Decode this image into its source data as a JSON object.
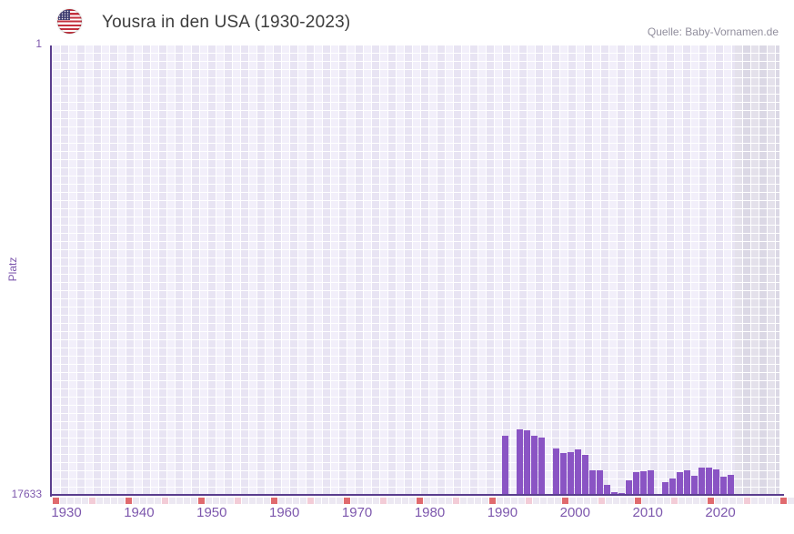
{
  "header": {
    "title": "Yousra in den USA (1930-2023)",
    "source_credit": "Quelle: Baby-Vornamen.de",
    "flag_icon": "us-flag-icon"
  },
  "chart_data": {
    "type": "bar",
    "title": "Yousra in den USA (1930-2023)",
    "xlabel": "",
    "ylabel": "Platz",
    "y_axis": {
      "min": 1,
      "max": 17633,
      "inverted": true,
      "tick_labels": [
        "1",
        "17633"
      ]
    },
    "x_axis": {
      "range": [
        1930,
        2030
      ],
      "tick_labels": [
        "1930",
        "1940",
        "1950",
        "1960",
        "1970",
        "1980",
        "1990",
        "2000",
        "2010",
        "2020"
      ]
    },
    "grid": true,
    "legend": false,
    "points": [
      {
        "year": 1991,
        "rank": 15280
      },
      {
        "year": 1993,
        "rank": 15030
      },
      {
        "year": 1994,
        "rank": 15070
      },
      {
        "year": 1995,
        "rank": 15280
      },
      {
        "year": 1996,
        "rank": 15350
      },
      {
        "year": 1998,
        "rank": 15790
      },
      {
        "year": 1999,
        "rank": 15960
      },
      {
        "year": 2000,
        "rank": 15920
      },
      {
        "year": 2001,
        "rank": 15820
      },
      {
        "year": 2002,
        "rank": 16030
      },
      {
        "year": 2003,
        "rank": 16640
      },
      {
        "year": 2004,
        "rank": 16640
      },
      {
        "year": 2005,
        "rank": 17210
      },
      {
        "year": 2006,
        "rank": 17490
      },
      {
        "year": 2007,
        "rank": 17530
      },
      {
        "year": 2008,
        "rank": 17030
      },
      {
        "year": 2009,
        "rank": 16710
      },
      {
        "year": 2010,
        "rank": 16670
      },
      {
        "year": 2011,
        "rank": 16640
      },
      {
        "year": 2013,
        "rank": 17100
      },
      {
        "year": 2014,
        "rank": 16960
      },
      {
        "year": 2015,
        "rank": 16710
      },
      {
        "year": 2016,
        "rank": 16640
      },
      {
        "year": 2017,
        "rank": 16850
      },
      {
        "year": 2018,
        "rank": 16530
      },
      {
        "year": 2019,
        "rank": 16530
      },
      {
        "year": 2020,
        "rank": 16600
      },
      {
        "year": 2021,
        "rank": 16890
      },
      {
        "year": 2022,
        "rank": 16810
      }
    ],
    "years_without_bar": [
      1992,
      1997,
      2012,
      2023
    ]
  },
  "colors": {
    "bar": "#8a54c4",
    "axis_line": "#5a3d8e",
    "axis_text": "#7d57ad",
    "title_text": "#3d3d3d",
    "source_text": "#918e9d",
    "grid_light": "#f2effa",
    "grid_dark": "#e8e4f3",
    "band_light": "#e4e1eb",
    "band_dark": "#dbd8e5",
    "tick_decade": "#e06a6e",
    "tick_half_decade": "#f3ccd7",
    "tick_default": "#ece8f2"
  }
}
